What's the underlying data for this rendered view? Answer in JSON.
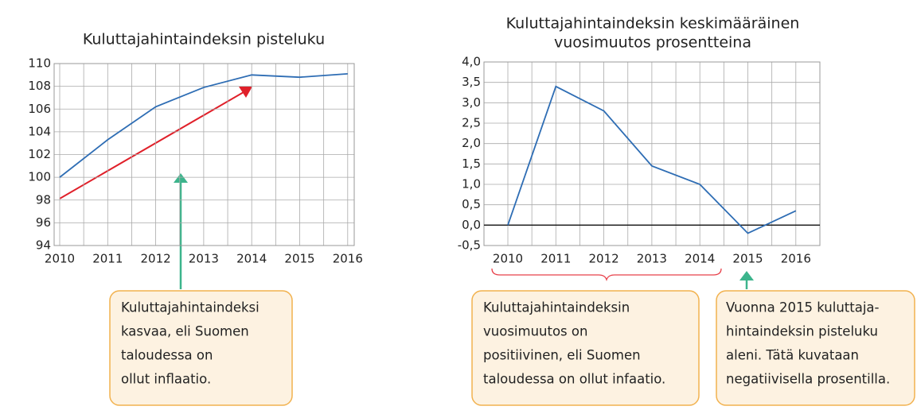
{
  "chart_data": [
    {
      "type": "line",
      "title": [
        "Kuluttajahintaindeksin pisteluku"
      ],
      "categories": [
        "2010",
        "2011",
        "2012",
        "2013",
        "2014",
        "2015",
        "2016"
      ],
      "values": [
        100.0,
        103.3,
        106.2,
        107.9,
        109.0,
        108.8,
        109.1
      ],
      "color": "#2e6db4",
      "ylim": [
        94,
        110
      ],
      "yticks": [
        94,
        96,
        98,
        100,
        102,
        104,
        106,
        108,
        110
      ],
      "grid": true,
      "annotations": [
        [
          "Kuluttajahintaindeksi",
          "kasvaa, eli Suomen",
          "taloudessa on",
          "ollut inflaatio."
        ]
      ]
    },
    {
      "type": "line",
      "title": [
        "Kuluttajahintaindeksin keskimääräinen",
        "vuosimuutos prosentteina"
      ],
      "categories": [
        "2010",
        "2011",
        "2012",
        "2013",
        "2014",
        "2015",
        "2016"
      ],
      "values": [
        0.0,
        3.4,
        2.8,
        1.45,
        1.0,
        -0.2,
        0.35
      ],
      "color": "#2e6db4",
      "ylim": [
        -0.5,
        4.0
      ],
      "yticks": [
        {
          "value": -0.5,
          "label": "-0,5"
        },
        {
          "value": 0,
          "label": "0,0"
        },
        {
          "value": 0.5,
          "label": "0,5"
        },
        {
          "value": 1,
          "label": "1,0"
        },
        {
          "value": 1.5,
          "label": "1,5"
        },
        {
          "value": 2,
          "label": "2,0"
        },
        {
          "value": 2.5,
          "label": "2,5"
        },
        {
          "value": 3,
          "label": "3,0"
        },
        {
          "value": 3.5,
          "label": "3,5"
        },
        {
          "value": 4,
          "label": "4,0"
        }
      ],
      "grid": true,
      "annotations": [
        [
          "Kuluttajahintaindeksin",
          "vuosimuutos on",
          "positiivinen, eli Suomen",
          "taloudessa on ollut infaatio."
        ],
        [
          "Vuonna 2015 kuluttaja-",
          "hintaindeksin pisteluku",
          "aleni. Tätä kuvataan",
          "negatiivisella prosentilla."
        ]
      ]
    }
  ]
}
